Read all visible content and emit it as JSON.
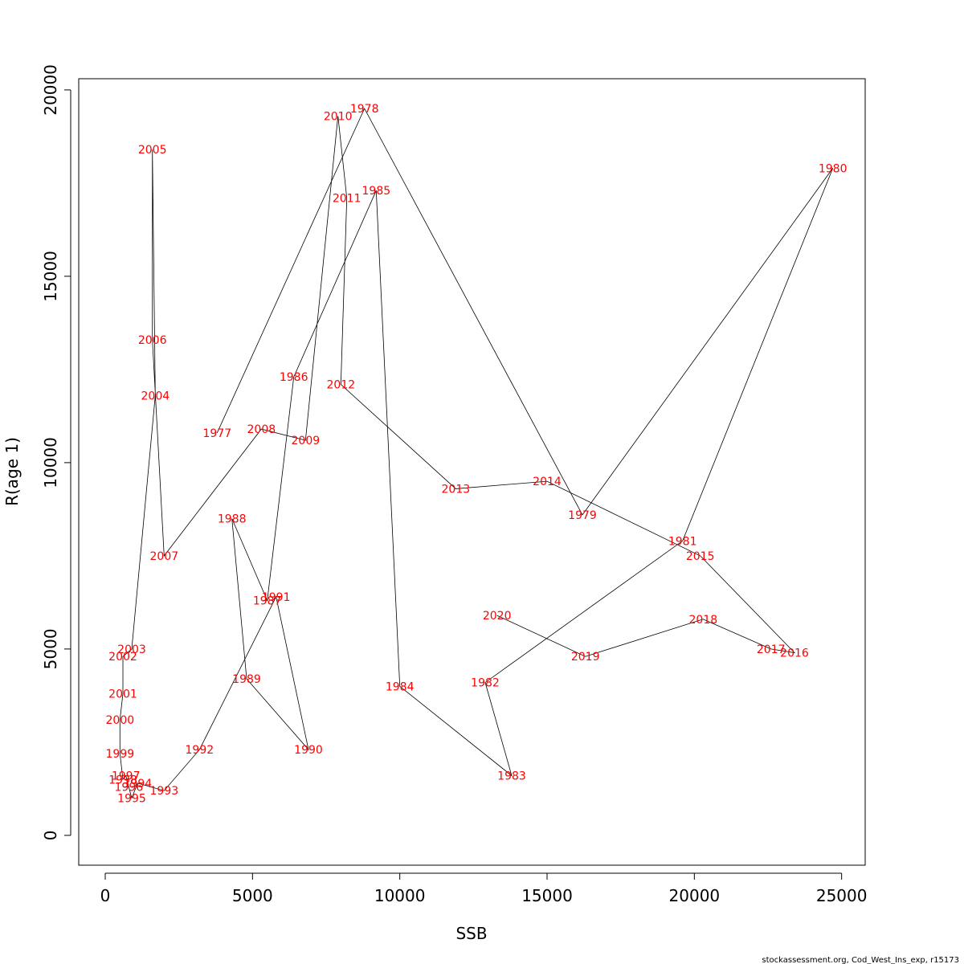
{
  "chart_data": {
    "type": "line",
    "xlabel": "SSB",
    "ylabel": "R(age 1)",
    "xlim": [
      -900,
      25800
    ],
    "ylim": [
      -800,
      20300
    ],
    "x_ticks": [
      0,
      5000,
      10000,
      15000,
      20000,
      25000
    ],
    "y_ticks": [
      0,
      5000,
      10000,
      15000,
      20000
    ],
    "x_tick_labels": [
      "0",
      "5000",
      "10000",
      "15000",
      "20000",
      "25000"
    ],
    "y_tick_labels": [
      "0",
      "5000",
      "10000",
      "15000",
      "20000"
    ],
    "grid": false,
    "line_color": "#000000",
    "label_color": "#ff0000",
    "caption": "stockassessment.org, Cod_West_Ins_exp, r15173",
    "points": [
      {
        "year": "1977",
        "x": 3800,
        "y": 10800
      },
      {
        "year": "1978",
        "x": 8800,
        "y": 19500
      },
      {
        "year": "1979",
        "x": 16200,
        "y": 8600
      },
      {
        "year": "1980",
        "x": 24700,
        "y": 17900
      },
      {
        "year": "1981",
        "x": 19600,
        "y": 7900
      },
      {
        "year": "1982",
        "x": 12900,
        "y": 4100
      },
      {
        "year": "1983",
        "x": 13800,
        "y": 1600
      },
      {
        "year": "1984",
        "x": 10000,
        "y": 4000
      },
      {
        "year": "1985",
        "x": 9200,
        "y": 17300
      },
      {
        "year": "1986",
        "x": 6400,
        "y": 12300
      },
      {
        "year": "1987",
        "x": 5500,
        "y": 6300
      },
      {
        "year": "1988",
        "x": 4300,
        "y": 8500
      },
      {
        "year": "1989",
        "x": 4800,
        "y": 4200
      },
      {
        "year": "1990",
        "x": 6900,
        "y": 2300
      },
      {
        "year": "1991",
        "x": 5800,
        "y": 6400
      },
      {
        "year": "1992",
        "x": 3200,
        "y": 2300
      },
      {
        "year": "1993",
        "x": 2000,
        "y": 1200
      },
      {
        "year": "1994",
        "x": 1100,
        "y": 1400
      },
      {
        "year": "1995",
        "x": 900,
        "y": 1000
      },
      {
        "year": "1996",
        "x": 800,
        "y": 1300
      },
      {
        "year": "1997",
        "x": 700,
        "y": 1600
      },
      {
        "year": "1998",
        "x": 600,
        "y": 1500
      },
      {
        "year": "1999",
        "x": 500,
        "y": 2200
      },
      {
        "year": "2000",
        "x": 500,
        "y": 3100
      },
      {
        "year": "2001",
        "x": 600,
        "y": 3800
      },
      {
        "year": "2002",
        "x": 600,
        "y": 4800
      },
      {
        "year": "2003",
        "x": 900,
        "y": 5000
      },
      {
        "year": "2004",
        "x": 1700,
        "y": 11800
      },
      {
        "year": "2005",
        "x": 1600,
        "y": 18400
      },
      {
        "year": "2006",
        "x": 1600,
        "y": 13300
      },
      {
        "year": "2007",
        "x": 2000,
        "y": 7500
      },
      {
        "year": "2008",
        "x": 5300,
        "y": 10900
      },
      {
        "year": "2009",
        "x": 6800,
        "y": 10600
      },
      {
        "year": "2010",
        "x": 7900,
        "y": 19300
      },
      {
        "year": "2011",
        "x": 8200,
        "y": 17100
      },
      {
        "year": "2012",
        "x": 8000,
        "y": 12100
      },
      {
        "year": "2013",
        "x": 11900,
        "y": 9300
      },
      {
        "year": "2014",
        "x": 15000,
        "y": 9500
      },
      {
        "year": "2015",
        "x": 20200,
        "y": 7500
      },
      {
        "year": "2016",
        "x": 23400,
        "y": 4900
      },
      {
        "year": "2017",
        "x": 22600,
        "y": 5000
      },
      {
        "year": "2018",
        "x": 20300,
        "y": 5800
      },
      {
        "year": "2019",
        "x": 16300,
        "y": 4800
      },
      {
        "year": "2020",
        "x": 13300,
        "y": 5900
      }
    ]
  }
}
